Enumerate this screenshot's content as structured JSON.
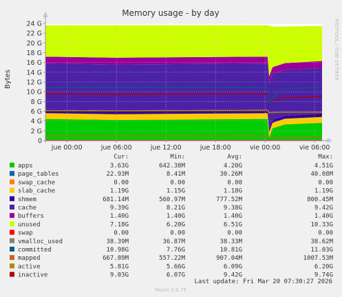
{
  "chart_data": {
    "type": "area",
    "title": "Memory usage - by day",
    "ylabel": "Bytes",
    "side_label": "RRDTOOL / TOBI OETIKER",
    "footer": "Munin 2.0.75",
    "last_update": "Last update: Fri Mar 20 07:30:27 2026",
    "ylim": [
      0,
      24
    ],
    "y_unit": "G",
    "yticks": [
      "0",
      "2 G",
      "4 G",
      "6 G",
      "8 G",
      "10 G",
      "12 G",
      "14 G",
      "16 G",
      "18 G",
      "20 G",
      "22 G",
      "24 G"
    ],
    "x_labels": [
      "jue 00:00",
      "jue 06:00",
      "jue 12:00",
      "jue 18:00",
      "vie 00:00",
      "vie 06:00"
    ],
    "x_positions_hours": [
      2.6,
      8.6,
      14.6,
      20.6,
      26.6,
      32.6
    ],
    "x_range_hours": [
      0,
      33.5
    ],
    "grid": true,
    "columns": [
      "Cur:",
      "Min:",
      "Avg:",
      "Max:"
    ],
    "legend": [
      {
        "name": "apps",
        "color": "#00cc00",
        "cur": "3.63G",
        "min": "642.38M",
        "avg": "4.20G",
        "max": "4.51G"
      },
      {
        "name": "page_tables",
        "color": "#0066b3",
        "cur": "22.93M",
        "min": "8.41M",
        "avg": "30.26M",
        "max": "40.08M"
      },
      {
        "name": "swap_cache",
        "color": "#ff8000",
        "cur": "0.00",
        "min": "0.00",
        "avg": "0.00",
        "max": "0.00"
      },
      {
        "name": "slab_cache",
        "color": "#ffcc00",
        "cur": "1.19G",
        "min": "1.15G",
        "avg": "1.18G",
        "max": "1.19G"
      },
      {
        "name": "shmem",
        "color": "#330099",
        "cur": "681.14M",
        "min": "560.97M",
        "avg": "777.52M",
        "max": "800.45M"
      },
      {
        "name": "cache",
        "color": "#4b22a6",
        "cur": "9.39G",
        "min": "8.21G",
        "avg": "9.38G",
        "max": "9.42G"
      },
      {
        "name": "buffers",
        "color": "#990099",
        "cur": "1.40G",
        "min": "1.40G",
        "avg": "1.40G",
        "max": "1.40G"
      },
      {
        "name": "unused",
        "color": "#ccff00",
        "cur": "7.18G",
        "min": "6.20G",
        "avg": "6.51G",
        "max": "10.33G"
      },
      {
        "name": "swap",
        "color": "#ff0000",
        "cur": "0.00",
        "min": "0.00",
        "avg": "0.00",
        "max": "0.00"
      },
      {
        "name": "vmalloc_used",
        "color": "#808080",
        "cur": "38.39M",
        "min": "36.87M",
        "avg": "38.33M",
        "max": "38.62M"
      },
      {
        "name": "committed",
        "color": "#005c87",
        "cur": "10.98G",
        "min": "7.76G",
        "avg": "10.81G",
        "max": "11.03G"
      },
      {
        "name": "mapped",
        "color": "#c9631f",
        "cur": "667.89M",
        "min": "557.22M",
        "avg": "907.04M",
        "max": "1007.53M"
      },
      {
        "name": "active",
        "color": "#b8860b",
        "cur": "5.81G",
        "min": "5.66G",
        "avg": "6.09G",
        "max": "6.20G"
      },
      {
        "name": "inactive",
        "color": "#b00000",
        "cur": "9.03G",
        "min": "6.07G",
        "avg": "9.42G",
        "max": "9.74G"
      }
    ],
    "stack_series": [
      {
        "name": "apps",
        "x": [
          0,
          8.5,
          26.9,
          27.1,
          27.5,
          29,
          33.5
        ],
        "y": [
          4.4,
          4.2,
          4.4,
          0.65,
          2.5,
          3.3,
          3.63
        ]
      },
      {
        "name": "page_tables",
        "x": [
          0,
          26.9,
          27.1,
          33.5
        ],
        "y": [
          0.03,
          0.03,
          0.01,
          0.02
        ]
      },
      {
        "name": "slab_cache",
        "x": [
          0,
          26.9,
          27.1,
          33.5
        ],
        "y": [
          1.18,
          1.18,
          1.15,
          1.19
        ]
      },
      {
        "name": "shmem",
        "x": [
          0,
          26.9,
          27.1,
          33.5
        ],
        "y": [
          0.78,
          0.78,
          0.56,
          0.68
        ]
      },
      {
        "name": "cache",
        "x": [
          0,
          8.5,
          26.9,
          27.1,
          33.5
        ],
        "y": [
          9.4,
          9.4,
          9.4,
          9.4,
          9.39
        ]
      },
      {
        "name": "buffers",
        "x": [
          0,
          26.9,
          27.1,
          33.5
        ],
        "y": [
          1.4,
          1.4,
          1.4,
          1.4
        ]
      },
      {
        "name": "unused",
        "x": [
          0,
          8.5,
          26.9,
          27.1,
          27.5,
          29,
          33.5
        ],
        "y": [
          6.41,
          6.61,
          6.41,
          10.33,
          8.3,
          7.5,
          7.18
        ]
      }
    ],
    "line_series": [
      {
        "name": "inactive",
        "x": [
          0,
          8.5,
          26.9,
          27.1,
          28.5,
          33.5
        ],
        "y": [
          9.6,
          9.5,
          9.6,
          8.0,
          8.7,
          9.03
        ]
      },
      {
        "name": "committed",
        "x": [
          0,
          26.9,
          27.1,
          28.5,
          33.5
        ],
        "y": [
          10.9,
          10.9,
          7.9,
          10.5,
          10.98
        ]
      },
      {
        "name": "active",
        "x": [
          0,
          8.5,
          26.9,
          27.1,
          28.5,
          33.5
        ],
        "y": [
          6.15,
          6.1,
          6.2,
          5.7,
          5.8,
          5.81
        ]
      },
      {
        "name": "mapped",
        "x": [
          0,
          26.9,
          27.1,
          33.5
        ],
        "y": [
          0.95,
          0.95,
          0.56,
          0.67
        ]
      },
      {
        "name": "vmalloc_used",
        "x": [
          0,
          33.5
        ],
        "y": [
          0.04,
          0.04
        ]
      },
      {
        "name": "swap",
        "x": [
          0,
          33.5
        ],
        "y": [
          0,
          0
        ]
      }
    ]
  }
}
